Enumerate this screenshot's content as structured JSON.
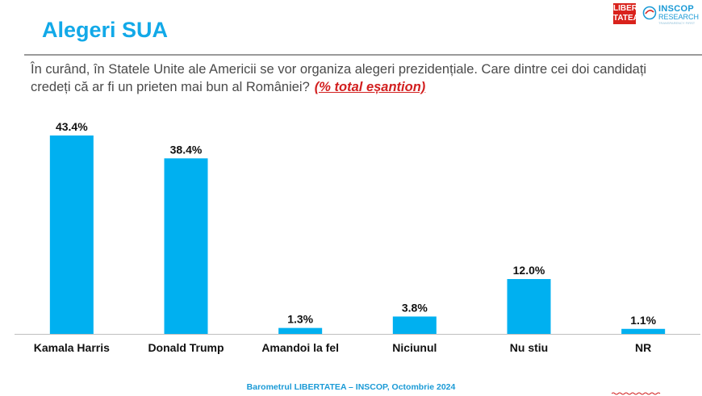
{
  "header": {
    "title": "Alegeri SUA",
    "logo_libertatea": "LIBER TATEA",
    "logo_inscop_name": "INSCOP",
    "logo_inscop_sub": "RESEARCH",
    "logo_inscop_tag": "TRANSPARENCY FIRST"
  },
  "question": {
    "text": "În curând, în Statele Unite ale Americii se vor organiza alegeri prezidențiale. Care dintre cei doi candidați credeți că ar fi un prieten mai bun al României?",
    "sample_note": "(% total eșantion)"
  },
  "chart_data": {
    "type": "bar",
    "categories": [
      "Kamala Harris",
      "Donald Trump",
      "Amandoi la fel",
      "Niciunul",
      "Nu stiu",
      "NR"
    ],
    "values": [
      43.4,
      38.4,
      1.3,
      3.8,
      12.0,
      1.1
    ],
    "value_labels": [
      "43.4%",
      "38.4%",
      "1.3%",
      "3.8%",
      "12.0%",
      "1.1%"
    ],
    "ylim": [
      0,
      43.4
    ],
    "grid": false,
    "bar_color": "#00b0f0"
  },
  "footer": {
    "text": "Barometrul LIBERTATEA – INSCOP, Octombrie 2024"
  },
  "colors": {
    "title": "#12a9e8",
    "accent_red": "#d21f1f"
  }
}
